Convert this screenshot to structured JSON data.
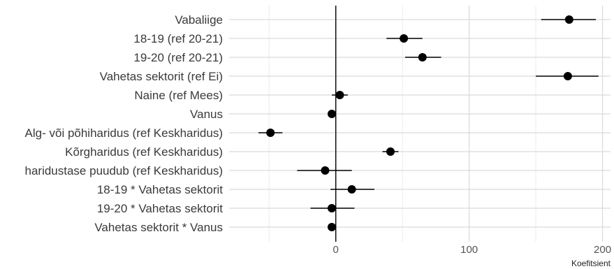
{
  "chart_data": {
    "type": "scatter",
    "title": "",
    "xlabel": "Koefitsient",
    "ylabel": "",
    "xlim": [
      -80,
      206
    ],
    "xticks": [
      0,
      100,
      200
    ],
    "grid": true,
    "legend": "none",
    "reference_line": 0,
    "colors": {
      "point": "#000000",
      "grid_major": "#d9d9d9",
      "grid_minor": "#ececec",
      "zero_line": "#000000"
    },
    "terms": [
      {
        "label": "Vabaliige",
        "estimate": 175,
        "low": 154,
        "high": 195
      },
      {
        "label": "18-19 (ref 20-21)",
        "estimate": 51,
        "low": 38,
        "high": 65
      },
      {
        "label": "19-20 (ref 20-21)",
        "estimate": 65,
        "low": 52,
        "high": 79
      },
      {
        "label": "Vahetas sektorit (ref Ei)",
        "estimate": 174,
        "low": 150,
        "high": 197
      },
      {
        "label": "Naine (ref Mees)",
        "estimate": 3,
        "low": -3,
        "high": 9
      },
      {
        "label": "Vanus",
        "estimate": -3,
        "low": -5,
        "high": -1
      },
      {
        "label": "Alg- või põhiharidus (ref Keskharidus)",
        "estimate": -49,
        "low": -58,
        "high": -40
      },
      {
        "label": "Kõrgharidus (ref Keskharidus)",
        "estimate": 41,
        "low": 35,
        "high": 47
      },
      {
        "label": "haridustase puudub (ref Keskharidus)",
        "estimate": -8,
        "low": -29,
        "high": 12
      },
      {
        "label": "18-19 * Vahetas sektorit",
        "estimate": 12,
        "low": -4,
        "high": 29
      },
      {
        "label": "19-20 * Vahetas sektorit",
        "estimate": -3,
        "low": -19,
        "high": 14
      },
      {
        "label": "Vahetas sektorit * Vanus",
        "estimate": -3,
        "low": -5,
        "high": -1
      }
    ]
  }
}
